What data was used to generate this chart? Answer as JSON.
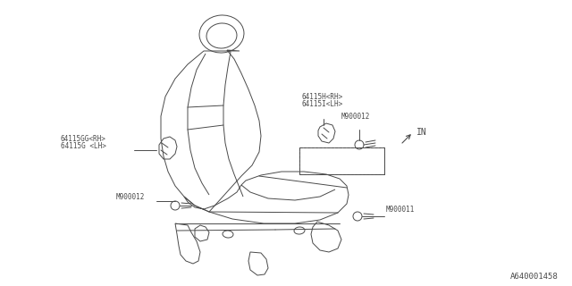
{
  "bg_color": "#ffffff",
  "line_color": "#4a4a4a",
  "fig_width": 6.4,
  "fig_height": 3.2,
  "dpi": 100,
  "part_labels": {
    "64115H_RH": "64115H<RH>",
    "64115I_LH": "64115I<LH>",
    "64115GG_RH": "64115GG<RH>",
    "64115G_LH": "64115G <LH>",
    "M900012_upper": "M900012",
    "M900012_lower": "M900012",
    "M900011": "M900011",
    "IN_label": "IN"
  },
  "watermark": "A640001458",
  "label_fontsize": 5.5,
  "watermark_fontsize": 6.5
}
